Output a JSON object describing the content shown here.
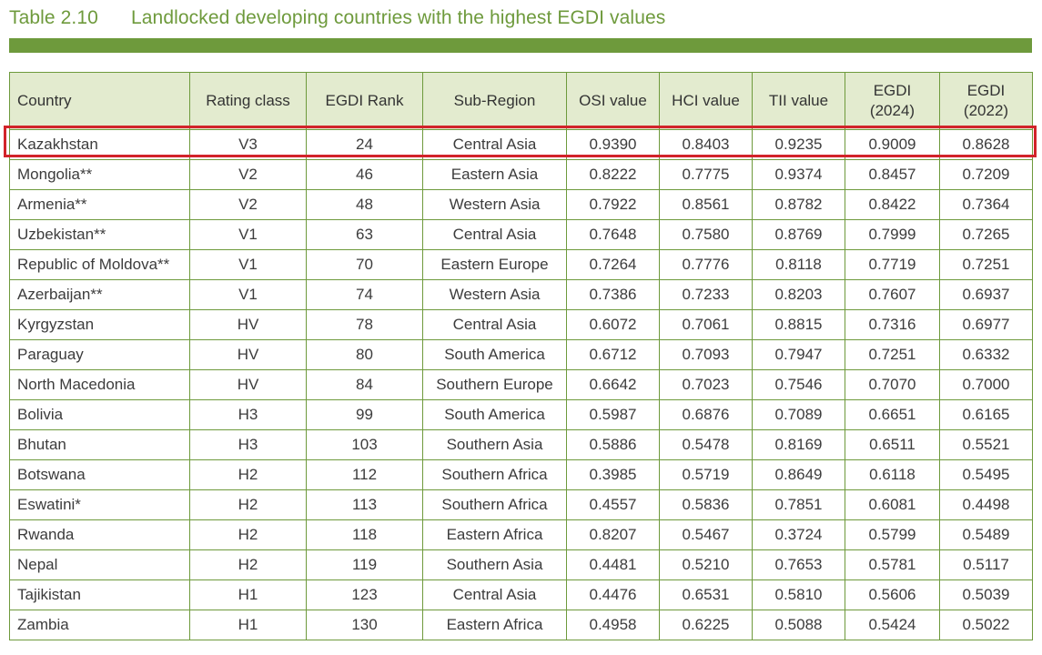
{
  "table": {
    "label": "Table 2.10",
    "title": "Landlocked developing countries with the highest EGDI values",
    "headers": {
      "country": "Country",
      "rating_class": "Rating class",
      "egdi_rank": "EGDI Rank",
      "sub_region": "Sub-Region",
      "osi": "OSI value",
      "hci": "HCI value",
      "tii": "TII value",
      "egdi_2024_a": "EGDI",
      "egdi_2024_b": "(2024)",
      "egdi_2022_a": "EGDI",
      "egdi_2022_b": "(2022)"
    },
    "rows": [
      [
        "Kazakhstan",
        "V3",
        "24",
        "Central Asia",
        "0.9390",
        "0.8403",
        "0.9235",
        "0.9009",
        "0.8628"
      ],
      [
        "Mongolia**",
        "V2",
        "46",
        "Eastern Asia",
        "0.8222",
        "0.7775",
        "0.9374",
        "0.8457",
        "0.7209"
      ],
      [
        "Armenia**",
        "V2",
        "48",
        "Western Asia",
        "0.7922",
        "0.8561",
        "0.8782",
        "0.8422",
        "0.7364"
      ],
      [
        "Uzbekistan**",
        "V1",
        "63",
        "Central Asia",
        "0.7648",
        "0.7580",
        "0.8769",
        "0.7999",
        "0.7265"
      ],
      [
        "Republic of Moldova**",
        "V1",
        "70",
        "Eastern Europe",
        "0.7264",
        "0.7776",
        "0.8118",
        "0.7719",
        "0.7251"
      ],
      [
        "Azerbaijan**",
        "V1",
        "74",
        "Western Asia",
        "0.7386",
        "0.7233",
        "0.8203",
        "0.7607",
        "0.6937"
      ],
      [
        "Kyrgyzstan",
        "HV",
        "78",
        "Central Asia",
        "0.6072",
        "0.7061",
        "0.8815",
        "0.7316",
        "0.6977"
      ],
      [
        "Paraguay",
        "HV",
        "80",
        "South America",
        "0.6712",
        "0.7093",
        "0.7947",
        "0.7251",
        "0.6332"
      ],
      [
        "North Macedonia",
        "HV",
        "84",
        "Southern Europe",
        "0.6642",
        "0.7023",
        "0.7546",
        "0.7070",
        "0.7000"
      ],
      [
        "Bolivia",
        "H3",
        "99",
        "South America",
        "0.5987",
        "0.6876",
        "0.7089",
        "0.6651",
        "0.6165"
      ],
      [
        "Bhutan",
        "H3",
        "103",
        "Southern Asia",
        "0.5886",
        "0.5478",
        "0.8169",
        "0.6511",
        "0.5521"
      ],
      [
        "Botswana",
        "H2",
        "112",
        "Southern Africa",
        "0.3985",
        "0.5719",
        "0.8649",
        "0.6118",
        "0.5495"
      ],
      [
        "Eswatini*",
        "H2",
        "113",
        "Southern Africa",
        "0.4557",
        "0.5836",
        "0.7851",
        "0.6081",
        "0.4498"
      ],
      [
        "Rwanda",
        "H2",
        "118",
        "Eastern Africa",
        "0.8207",
        "0.5467",
        "0.3724",
        "0.5799",
        "0.5489"
      ],
      [
        "Nepal",
        "H2",
        "119",
        "Southern Asia",
        "0.4481",
        "0.5210",
        "0.7653",
        "0.5781",
        "0.5117"
      ],
      [
        "Tajikistan",
        "H1",
        "123",
        "Central Asia",
        "0.4476",
        "0.6531",
        "0.5810",
        "0.5606",
        "0.5039"
      ],
      [
        "Zambia",
        "H1",
        "130",
        "Eastern Africa",
        "0.4958",
        "0.6225",
        "0.5088",
        "0.5424",
        "0.5022"
      ]
    ]
  },
  "highlighted_row": "Kazakhstan",
  "colors": {
    "accent_green": "#6e9a3c",
    "header_bg": "#e3ebcf",
    "highlight_red": "#d2232a"
  }
}
